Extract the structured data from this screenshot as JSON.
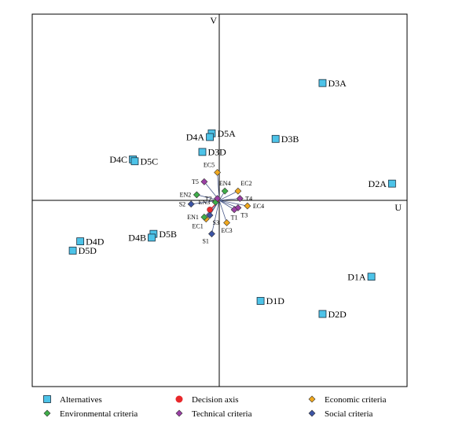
{
  "chart_data": {
    "type": "scatter",
    "subtype": "GAIA plane projection (PROMETHEE biplot)",
    "axes": {
      "x_label": "U",
      "y_label": "V",
      "origin_crosshair": true,
      "ticks": false,
      "grid": false
    },
    "xlim": [
      -1.0,
      1.0
    ],
    "ylim": [
      -1.0,
      1.0
    ],
    "legend": {
      "placement": "bottom",
      "entries": [
        {
          "key": "alternatives",
          "label": "Alternatives",
          "marker": "square",
          "color": "#4dc3e8"
        },
        {
          "key": "decision_axis",
          "label": "Decision axis",
          "marker": "circle",
          "color": "#e8282b"
        },
        {
          "key": "economic",
          "label": "Economic criteria",
          "marker": "diamond",
          "color": "#f0a81e"
        },
        {
          "key": "environmental",
          "label": "Environmental criteria",
          "marker": "diamond",
          "color": "#3fae49"
        },
        {
          "key": "technical",
          "label": "Technical criteria",
          "marker": "diamond",
          "color": "#9b3fa5"
        },
        {
          "key": "social",
          "label": "Social criteria",
          "marker": "diamond",
          "color": "#3c54a5"
        }
      ]
    },
    "alternatives": [
      {
        "label": "D3A",
        "x": 0.55,
        "y": 0.63,
        "label_pos": "right"
      },
      {
        "label": "D2A",
        "x": 0.92,
        "y": 0.09,
        "label_pos": "left"
      },
      {
        "label": "D1A",
        "x": 0.81,
        "y": -0.41,
        "label_pos": "left"
      },
      {
        "label": "D2D",
        "x": 0.55,
        "y": -0.61,
        "label_pos": "right"
      },
      {
        "label": "D1D",
        "x": 0.22,
        "y": -0.54,
        "label_pos": "right"
      },
      {
        "label": "D3B",
        "x": 0.3,
        "y": 0.33,
        "label_pos": "right"
      },
      {
        "label": "D5A",
        "x": -0.04,
        "y": 0.36,
        "label_pos": "right"
      },
      {
        "label": "D4A",
        "x": -0.05,
        "y": 0.34,
        "label_pos": "left"
      },
      {
        "label": "D3D",
        "x": -0.09,
        "y": 0.26,
        "label_pos": "right"
      },
      {
        "label": "D4C",
        "x": -0.46,
        "y": 0.22,
        "label_pos": "left"
      },
      {
        "label": "D5C",
        "x": -0.45,
        "y": 0.21,
        "label_pos": "right"
      },
      {
        "label": "D5B",
        "x": -0.35,
        "y": -0.18,
        "label_pos": "right"
      },
      {
        "label": "D4B",
        "x": -0.36,
        "y": -0.2,
        "label_pos": "left"
      },
      {
        "label": "D4D",
        "x": -0.74,
        "y": -0.22,
        "label_pos": "right"
      },
      {
        "label": "D5D",
        "x": -0.78,
        "y": -0.27,
        "label_pos": "right"
      }
    ],
    "decision_axis": {
      "x": -0.05,
      "y": -0.05
    },
    "criteria": [
      {
        "label": "EC5",
        "group": "economic",
        "x": -0.01,
        "y": 0.15,
        "label_pos": "top-left"
      },
      {
        "label": "EC2",
        "group": "economic",
        "x": 0.1,
        "y": 0.05,
        "label_pos": "top-right"
      },
      {
        "label": "EC4",
        "group": "economic",
        "x": 0.15,
        "y": -0.03,
        "label_pos": "right"
      },
      {
        "label": "EC3",
        "group": "economic",
        "x": 0.04,
        "y": -0.12,
        "label_pos": "bottom"
      },
      {
        "label": "EC1",
        "group": "economic",
        "x": -0.07,
        "y": -0.1,
        "label_pos": "bottom-left"
      },
      {
        "label": "EN4",
        "group": "environmental",
        "x": 0.03,
        "y": 0.05,
        "label_pos": "top"
      },
      {
        "label": "EN2",
        "group": "environmental",
        "x": -0.12,
        "y": 0.03,
        "label_pos": "left"
      },
      {
        "label": "EN1",
        "group": "environmental",
        "x": -0.08,
        "y": -0.09,
        "label_pos": "left"
      },
      {
        "label": "EN3",
        "group": "environmental",
        "x": -0.02,
        "y": -0.01,
        "label_pos": "left"
      },
      {
        "label": "T5",
        "group": "technical",
        "x": -0.08,
        "y": 0.1,
        "label_pos": "left"
      },
      {
        "label": "T2",
        "group": "technical",
        "x": -0.01,
        "y": 0.01,
        "label_pos": "left"
      },
      {
        "label": "T4",
        "group": "technical",
        "x": 0.11,
        "y": 0.01,
        "label_pos": "right"
      },
      {
        "label": "T3",
        "group": "technical",
        "x": 0.1,
        "y": -0.04,
        "label_pos": "bottom-right"
      },
      {
        "label": "T1",
        "group": "technical",
        "x": 0.08,
        "y": -0.05,
        "label_pos": "bottom"
      },
      {
        "label": "S2",
        "group": "social",
        "x": -0.15,
        "y": -0.02,
        "label_pos": "left"
      },
      {
        "label": "S3",
        "group": "social",
        "x": -0.05,
        "y": -0.08,
        "label_pos": "bottom-right"
      },
      {
        "label": "S1",
        "group": "social",
        "x": -0.04,
        "y": -0.18,
        "label_pos": "bottom-left"
      }
    ]
  }
}
